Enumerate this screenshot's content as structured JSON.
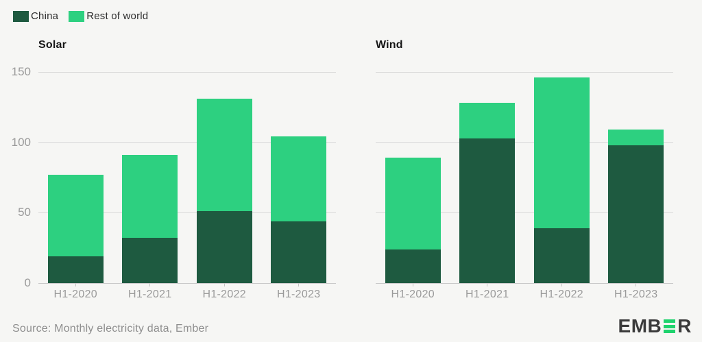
{
  "colors": {
    "background": "#f6f6f4",
    "china": "#1e5a40",
    "rest_of_world": "#2dd080",
    "gridline": "#d9d9d9",
    "axis_line": "#c8c8c8",
    "axis_text": "#9a9a9a",
    "title_text": "#161616",
    "source_text": "#8e8e8e",
    "logo_text": "#3b3b3b",
    "logo_green": "#1fd36e"
  },
  "legend": {
    "items": [
      {
        "label": "China",
        "color": "#1e5a40"
      },
      {
        "label": "Rest of world",
        "color": "#2dd080"
      }
    ]
  },
  "chart_data": [
    {
      "type": "bar",
      "stacked": true,
      "title": "Solar",
      "categories": [
        "H1-2020",
        "H1-2021",
        "H1-2022",
        "H1-2023"
      ],
      "series": [
        {
          "name": "China",
          "color": "#1e5a40",
          "values": [
            19,
            32,
            51,
            44
          ]
        },
        {
          "name": "Rest of world",
          "color": "#2dd080",
          "values": [
            58,
            59,
            80,
            60
          ]
        }
      ],
      "totals": [
        77,
        91,
        131,
        104
      ],
      "xlabel": "",
      "ylabel": "",
      "ylim": [
        0,
        150
      ],
      "yticks": [
        0,
        50,
        100,
        150
      ],
      "grid": true,
      "show_y_labels": true,
      "legend_position": "top-left"
    },
    {
      "type": "bar",
      "stacked": true,
      "title": "Wind",
      "categories": [
        "H1-2020",
        "H1-2021",
        "H1-2022",
        "H1-2023"
      ],
      "series": [
        {
          "name": "China",
          "color": "#1e5a40",
          "values": [
            24,
            103,
            39,
            98
          ]
        },
        {
          "name": "Rest of world",
          "color": "#2dd080",
          "values": [
            65,
            25,
            107,
            11
          ]
        }
      ],
      "totals": [
        89,
        128,
        146,
        109
      ],
      "xlabel": "",
      "ylabel": "",
      "ylim": [
        0,
        150
      ],
      "yticks": [
        0,
        50,
        100,
        150
      ],
      "grid": true,
      "show_y_labels": false,
      "legend_position": "top-left"
    }
  ],
  "source": {
    "text": "Source: Monthly electricity data, Ember"
  },
  "logo": {
    "prefix": "EMB",
    "suffix": "R"
  }
}
